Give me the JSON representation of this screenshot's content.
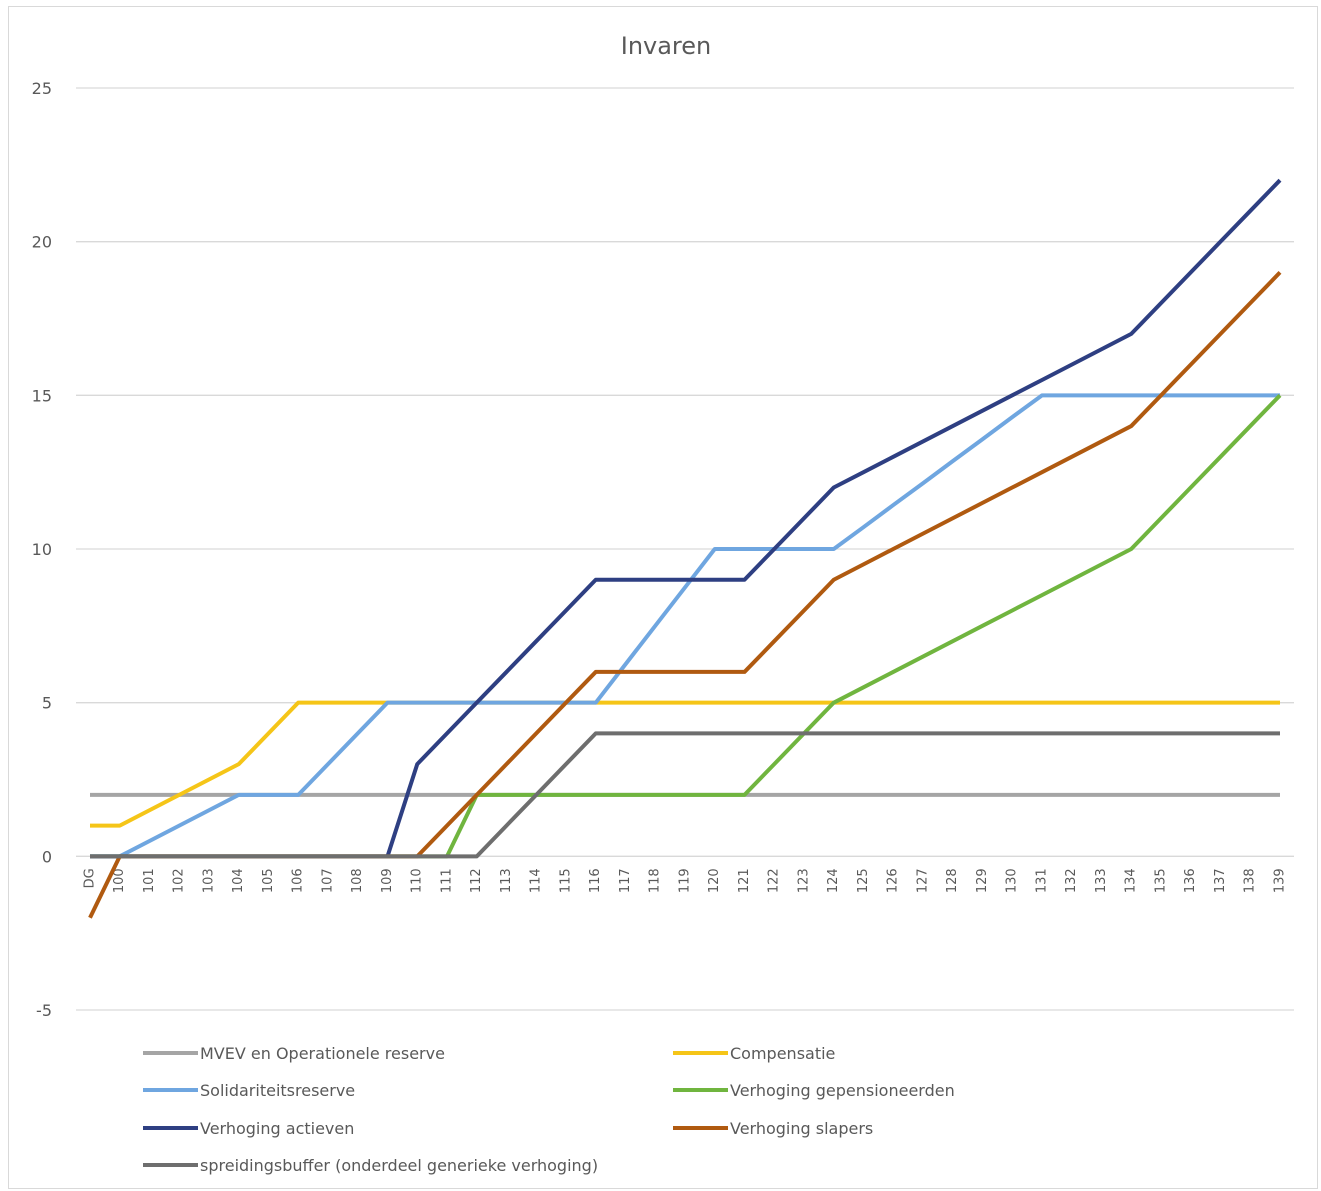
{
  "chart_data": {
    "type": "line",
    "title": "Invaren",
    "xlabel": "",
    "ylabel": "",
    "ylim": [
      -5,
      25
    ],
    "yticks": [
      25,
      20,
      15,
      10,
      5,
      0,
      -5
    ],
    "grid": true,
    "legend_position": "bottom",
    "categories": [
      "DG",
      "100",
      "101",
      "102",
      "103",
      "104",
      "105",
      "106",
      "107",
      "108",
      "109",
      "110",
      "111",
      "112",
      "113",
      "114",
      "115",
      "116",
      "117",
      "118",
      "119",
      "120",
      "121",
      "122",
      "123",
      "124",
      "125",
      "126",
      "127",
      "128",
      "129",
      "130",
      "131",
      "132",
      "133",
      "134",
      "135",
      "136",
      "137",
      "138",
      "139"
    ],
    "series": [
      {
        "name": "MVEV en Operationele reserve",
        "color": "#a5a5a5",
        "values": [
          2,
          2,
          2,
          2,
          2,
          2,
          2,
          2,
          2,
          2,
          2,
          2,
          2,
          2,
          2,
          2,
          2,
          2,
          2,
          2,
          2,
          2,
          2,
          2,
          2,
          2,
          2,
          2,
          2,
          2,
          2,
          2,
          2,
          2,
          2,
          2,
          2,
          2,
          2,
          2,
          2
        ]
      },
      {
        "name": "Compensatie",
        "color": "#f5c518",
        "values": [
          1,
          1,
          1.5,
          2,
          2.5,
          3,
          4,
          5,
          5,
          5,
          5,
          5,
          5,
          5,
          5,
          5,
          5,
          5,
          5,
          5,
          5,
          5,
          5,
          5,
          5,
          5,
          5,
          5,
          5,
          5,
          5,
          5,
          5,
          5,
          5,
          5,
          5,
          5,
          5,
          5,
          5
        ]
      },
      {
        "name": "Solidariteitsreserve",
        "color": "#6fa6e0",
        "values": [
          0,
          0,
          0.5,
          1,
          1.5,
          2,
          2,
          2,
          3,
          4,
          5,
          5,
          5,
          5,
          5,
          5,
          5,
          5,
          6.25,
          7.5,
          8.75,
          10,
          10,
          10,
          10,
          10,
          10.71,
          11.43,
          12.14,
          12.86,
          13.57,
          14.29,
          15,
          15,
          15,
          15,
          15,
          15,
          15,
          15,
          15
        ]
      },
      {
        "name": "Verhoging gepensioneerden",
        "color": "#70b53f",
        "values": [
          0,
          0,
          0,
          0,
          0,
          0,
          0,
          0,
          0,
          0,
          0,
          0,
          0,
          2,
          2,
          2,
          2,
          2,
          2,
          2,
          2,
          2,
          2,
          3,
          4,
          5,
          5.5,
          6,
          6.5,
          7,
          7.5,
          8,
          8.5,
          9,
          9.5,
          10,
          11,
          12,
          13,
          14,
          15
        ]
      },
      {
        "name": "Verhoging actieven",
        "color": "#2e3f82",
        "values": [
          0,
          0,
          0,
          0,
          0,
          0,
          0,
          0,
          0,
          0,
          0,
          3,
          4,
          5,
          6,
          7,
          8,
          9,
          9,
          9,
          9,
          9,
          9,
          10,
          11,
          12,
          12.5,
          13,
          13.5,
          14,
          14.5,
          15,
          15.5,
          16,
          16.5,
          17,
          18,
          19,
          20,
          21,
          22
        ]
      },
      {
        "name": "Verhoging slapers",
        "color": "#b05a10",
        "values": [
          -2,
          0,
          0,
          0,
          0,
          0,
          0,
          0,
          0,
          0,
          0,
          0,
          1,
          2,
          3,
          4,
          5,
          6,
          6,
          6,
          6,
          6,
          6,
          7,
          8,
          9,
          9.5,
          10,
          10.5,
          11,
          11.5,
          12,
          12.5,
          13,
          13.5,
          14,
          15,
          16,
          17,
          18,
          19
        ]
      },
      {
        "name": "spreidingsbuffer (onderdeel generieke verhoging)",
        "color": "#6e6e6e",
        "values": [
          0,
          0,
          0,
          0,
          0,
          0,
          0,
          0,
          0,
          0,
          0,
          0,
          0,
          0,
          1,
          2,
          3,
          4,
          4,
          4,
          4,
          4,
          4,
          4,
          4,
          4,
          4,
          4,
          4,
          4,
          4,
          4,
          4,
          4,
          4,
          4,
          4,
          4,
          4,
          4,
          4
        ]
      }
    ]
  }
}
